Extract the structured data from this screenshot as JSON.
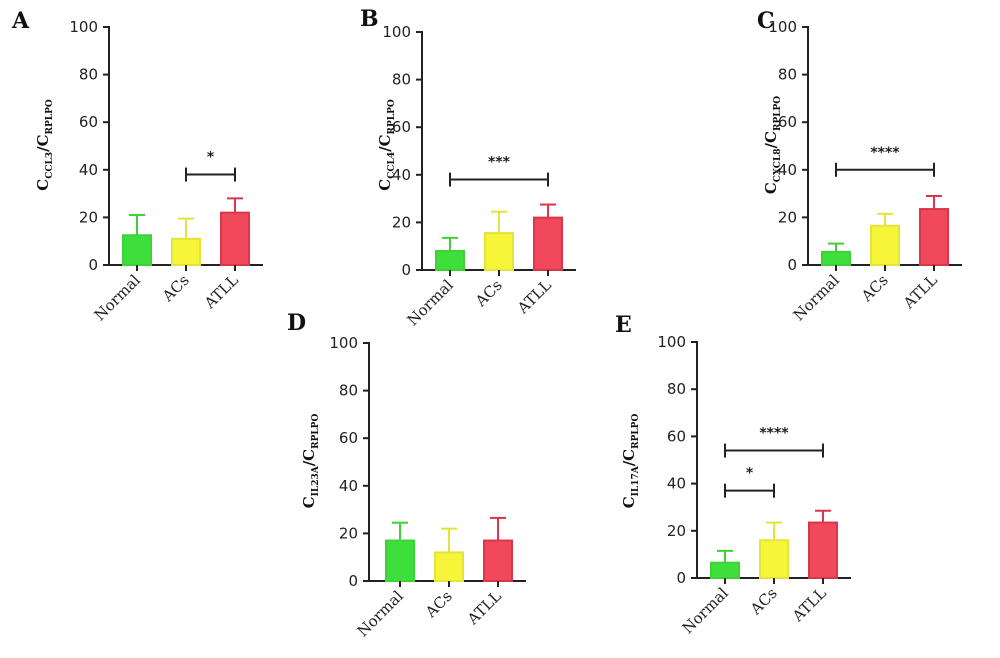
{
  "colors": {
    "Normal": "#3de03a",
    "ACs": "#f7f53a",
    "ATLL": "#f2485c",
    "Normal_edge": "#3fd03a",
    "ACs_edge": "#e5e23a",
    "ATLL_edge": "#d8364b"
  },
  "chart_data": [
    {
      "type": "bar",
      "panel": "A",
      "categories": [
        "Normal",
        "ACs",
        "ATLL"
      ],
      "values": [
        12.5,
        11,
        22
      ],
      "errors": [
        8.5,
        8.5,
        6
      ],
      "ylabel": {
        "main": "C",
        "sub": "CCL3",
        "sep": "/C",
        "sub2": "RPLPO"
      },
      "ylim": [
        0,
        100
      ],
      "yticks": [
        0,
        20,
        40,
        60,
        80,
        100
      ],
      "significance": [
        {
          "from": 1,
          "to": 2,
          "y": 38,
          "label": "*"
        }
      ]
    },
    {
      "type": "bar",
      "panel": "B",
      "categories": [
        "Normal",
        "ACs",
        "ATLL"
      ],
      "values": [
        8,
        15.5,
        22
      ],
      "errors": [
        5.5,
        9,
        5.5
      ],
      "ylabel": {
        "main": "C",
        "sub": "CCL4",
        "sep": "/C",
        "sub2": "RPLPO"
      },
      "ylim": [
        0,
        100
      ],
      "yticks": [
        0,
        20,
        40,
        60,
        80,
        100
      ],
      "significance": [
        {
          "from": 0,
          "to": 2,
          "y": 38,
          "label": "***"
        }
      ]
    },
    {
      "type": "bar",
      "panel": "C",
      "categories": [
        "Normal",
        "ACs",
        "ATLL"
      ],
      "values": [
        5.5,
        16.5,
        23.5
      ],
      "errors": [
        3.5,
        5,
        5.5
      ],
      "ylabel": {
        "main": "C",
        "sub": "CXCL8",
        "sep": "/C",
        "sub2": "RPLPO"
      },
      "ylim": [
        0,
        100
      ],
      "yticks": [
        0,
        20,
        40,
        60,
        80,
        100
      ],
      "significance": [
        {
          "from": 0,
          "to": 2,
          "y": 40,
          "label": "****"
        }
      ]
    },
    {
      "type": "bar",
      "panel": "D",
      "categories": [
        "Normal",
        "ACs",
        "ATLL"
      ],
      "values": [
        17,
        12,
        17
      ],
      "errors": [
        7.5,
        10,
        9.5
      ],
      "ylabel": {
        "main": "C",
        "sub": "IL23A",
        "sep": "/C",
        "sub2": "RPLPO"
      },
      "ylim": [
        0,
        100
      ],
      "yticks": [
        0,
        20,
        40,
        60,
        80,
        100
      ],
      "significance": []
    },
    {
      "type": "bar",
      "panel": "E",
      "categories": [
        "Normal",
        "ACs",
        "ATLL"
      ],
      "values": [
        6.5,
        16,
        23.5
      ],
      "errors": [
        5,
        7.5,
        5
      ],
      "ylabel": {
        "main": "C",
        "sub": "IL17A",
        "sep": "/C",
        "sub2": "RPLPO"
      },
      "ylim": [
        0,
        100
      ],
      "yticks": [
        0,
        20,
        40,
        60,
        80,
        100
      ],
      "significance": [
        {
          "from": 0,
          "to": 2,
          "y": 54,
          "label": "****"
        },
        {
          "from": 0,
          "to": 1,
          "y": 37,
          "label": "*"
        }
      ]
    }
  ]
}
